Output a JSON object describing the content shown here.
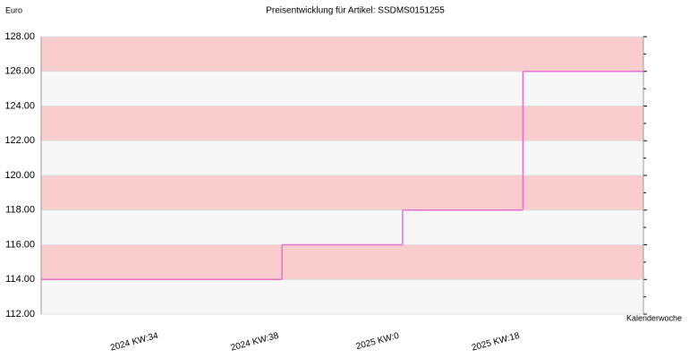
{
  "chart_data": {
    "type": "step",
    "title": "Preisentwicklung für Artikel: SSDMS0151255",
    "y_label": "Euro",
    "x_label": "Kalenderwoche",
    "categories": [
      null,
      "2024 KW:34",
      "2024 KW:38",
      "2025 KW:0",
      "2025 KW:18",
      null
    ],
    "values": [
      114,
      114,
      116,
      118,
      126,
      126
    ],
    "step": "post",
    "color": "#ee70cc",
    "ylim": [
      112,
      128
    ],
    "yticks": [
      {
        "value": 112,
        "label": "112.00"
      },
      {
        "value": 114,
        "label": "114.00"
      },
      {
        "value": 116,
        "label": "116.00"
      },
      {
        "value": 118,
        "label": "118.00"
      },
      {
        "value": 120,
        "label": "120.00"
      },
      {
        "value": 122,
        "label": "122.00"
      },
      {
        "value": 124,
        "label": "124.00"
      },
      {
        "value": 126,
        "label": "126.00"
      },
      {
        "value": 128,
        "label": "128.00"
      }
    ],
    "minor_yticks": [
      113,
      115,
      117,
      119,
      121,
      123,
      125,
      127
    ],
    "band_colors": [
      "#f7f7f7",
      "#f9cdcd"
    ]
  }
}
